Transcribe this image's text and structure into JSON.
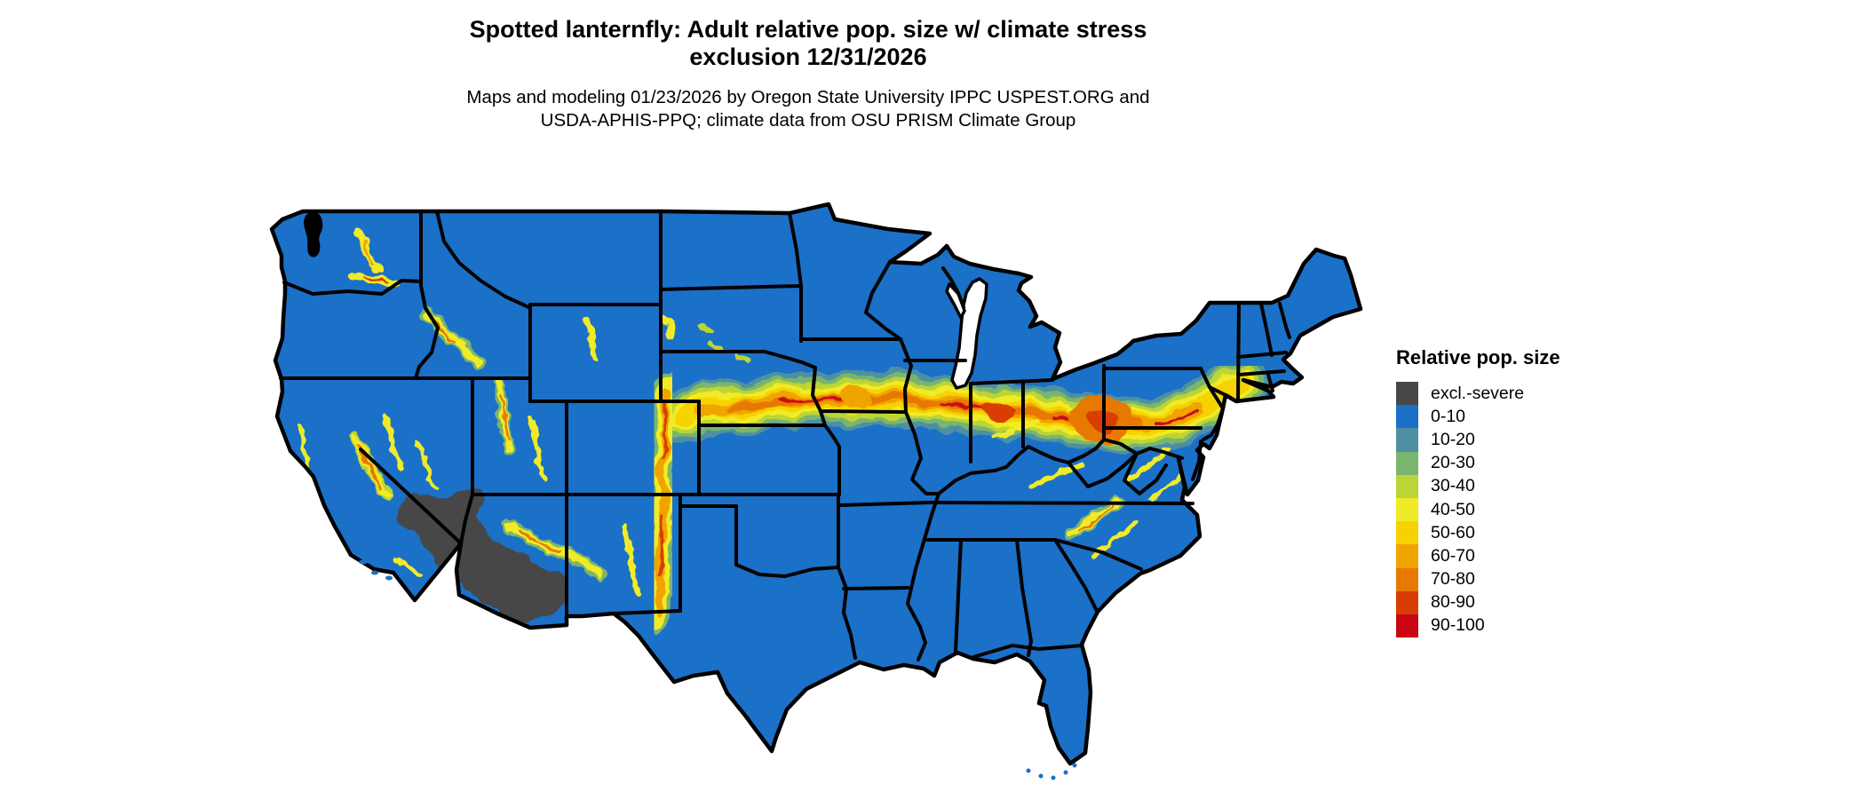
{
  "page": {
    "background": "#FFFFFF"
  },
  "title": {
    "line1": "Spotted lanternfly: Adult relative pop. size w/ climate stress",
    "line2": "exclusion 12/31/2026"
  },
  "subtitle": {
    "line1": "Maps and modeling 01/23/2026 by Oregon State University IPPC USPEST.ORG and",
    "line2": "USDA-APHIS-PPQ; climate data from OSU PRISM Climate Group"
  },
  "legend": {
    "title": "Relative pop. size",
    "items": [
      {
        "label": "excl.-severe",
        "color": "#474747"
      },
      {
        "label": "0-10",
        "color": "#1B70C8"
      },
      {
        "label": "10-20",
        "color": "#4E90A2"
      },
      {
        "label": "20-30",
        "color": "#79B56E"
      },
      {
        "label": "30-40",
        "color": "#BCD435"
      },
      {
        "label": "40-50",
        "color": "#F0EB27"
      },
      {
        "label": "50-60",
        "color": "#F6D300"
      },
      {
        "label": "60-70",
        "color": "#EFA400"
      },
      {
        "label": "70-80",
        "color": "#E87900"
      },
      {
        "label": "80-90",
        "color": "#D93D05"
      },
      {
        "label": "90-100",
        "color": "#C90713"
      }
    ]
  },
  "map": {
    "region": "Continental United States",
    "border_color": "#000000",
    "water_background": "#FFFFFF"
  }
}
